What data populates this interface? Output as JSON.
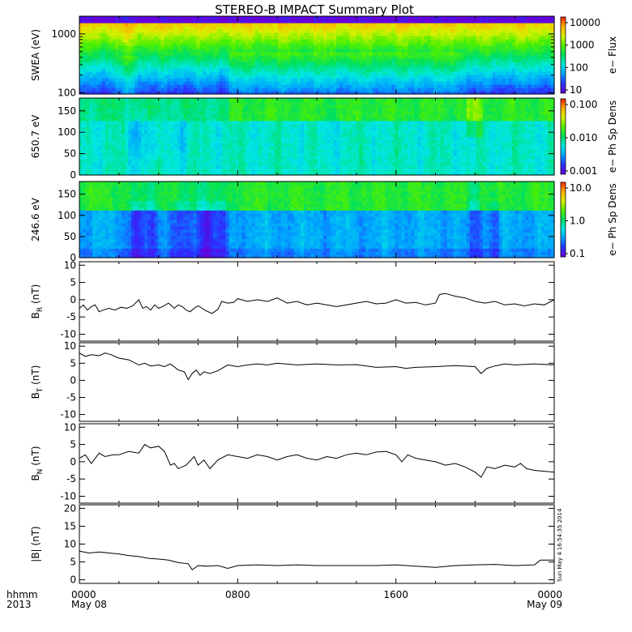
{
  "title": "STEREO-B IMPACT Summary Plot",
  "timestamp": "Sun May  4 16:54:35 2014",
  "time_axis": {
    "row1_label": "hhmm",
    "row2_label": "2013",
    "ticks": [
      {
        "hours": 0,
        "top": "0000",
        "bottom": "May 08"
      },
      {
        "hours": 8,
        "top": "0800",
        "bottom": ""
      },
      {
        "hours": 16,
        "top": "1600",
        "bottom": ""
      },
      {
        "hours": 24,
        "top": "0000",
        "bottom": "May 09"
      }
    ],
    "range_hours": [
      0,
      24
    ]
  },
  "colors": {
    "spectrogram_scale": [
      "#6a00d8",
      "#2a30ff",
      "#00a0ff",
      "#00e8e0",
      "#00e060",
      "#50f000",
      "#d8f000",
      "#ffb000",
      "#ff2000"
    ]
  },
  "chart_data": [
    {
      "type": "heatmap",
      "ylabel": "SWEA (eV)",
      "yscale": "log",
      "ylim": [
        95,
        2000
      ],
      "yticks": [
        "1000",
        "100"
      ],
      "colorbar": {
        "label": "e− Flux",
        "scale": "log",
        "ticks": [
          "10000",
          "1000",
          "100",
          "10"
        ]
      }
    },
    {
      "type": "heatmap",
      "ylabel": "650.7 eV",
      "ylim": [
        0,
        180
      ],
      "yticks": [
        "150",
        "100",
        "50",
        "0"
      ],
      "colorbar": {
        "label": "e− Ph Sp Dens",
        "scale": "log",
        "ticks": [
          "0.100",
          "0.010",
          "0.001"
        ]
      }
    },
    {
      "type": "heatmap",
      "ylabel": "246.6 eV",
      "ylim": [
        0,
        180
      ],
      "yticks": [
        "150",
        "100",
        "50",
        "0"
      ],
      "colorbar": {
        "label": "e− Ph Sp Dens",
        "scale": "log",
        "ticks": [
          "10.0",
          "1.0",
          "0.1"
        ]
      }
    },
    {
      "type": "line",
      "ylabel_main": "B",
      "ylabel_sub": "R",
      "ylabel_unit": " (nT)",
      "ylim": [
        -12,
        11
      ],
      "yticks": [
        "10",
        "5",
        "0",
        "-5",
        "-10"
      ],
      "x": [
        0,
        0.2,
        0.4,
        0.6,
        0.8,
        1.0,
        1.2,
        1.5,
        1.8,
        2.1,
        2.4,
        2.7,
        3.0,
        3.2,
        3.4,
        3.6,
        3.8,
        4.0,
        4.2,
        4.5,
        4.8,
        5.0,
        5.2,
        5.4,
        5.6,
        5.8,
        6.0,
        6.2,
        6.4,
        6.7,
        7.0,
        7.2,
        7.5,
        7.8,
        8.0,
        8.5,
        9.0,
        9.5,
        10.0,
        10.5,
        11.0,
        11.5,
        12.0,
        12.5,
        13.0,
        13.5,
        14.0,
        14.5,
        15.0,
        15.5,
        16.0,
        16.5,
        17.0,
        17.5,
        18.0,
        18.2,
        18.5,
        19.0,
        19.5,
        20.0,
        20.5,
        21.0,
        21.5,
        22.0,
        22.5,
        23.0,
        23.5,
        24.0
      ],
      "y": [
        -2.5,
        -1.5,
        -3.0,
        -2.0,
        -1.5,
        -3.5,
        -3.0,
        -2.5,
        -3.0,
        -2.2,
        -2.5,
        -1.8,
        0.0,
        -2.5,
        -2.0,
        -3.0,
        -1.5,
        -2.5,
        -2.0,
        -1.0,
        -2.5,
        -1.5,
        -2.0,
        -3.0,
        -3.5,
        -2.5,
        -1.8,
        -2.5,
        -3.2,
        -4.0,
        -2.8,
        -0.5,
        -1.0,
        -0.8,
        0.3,
        -0.5,
        0.0,
        -0.5,
        0.5,
        -1.0,
        -0.5,
        -1.5,
        -1.0,
        -1.5,
        -2.0,
        -1.5,
        -1.0,
        -0.5,
        -1.2,
        -1.0,
        0.0,
        -1.0,
        -0.8,
        -1.5,
        -1.0,
        1.5,
        1.8,
        1.0,
        0.5,
        -0.5,
        -1.0,
        -0.5,
        -1.5,
        -1.2,
        -1.8,
        -1.2,
        -1.5,
        0.0
      ]
    },
    {
      "type": "line",
      "ylabel_main": "B",
      "ylabel_sub": "T",
      "ylabel_unit": " (nT)",
      "ylim": [
        -12,
        11
      ],
      "yticks": [
        "10",
        "5",
        "0",
        "-5",
        "-10"
      ],
      "x": [
        0,
        0.3,
        0.6,
        1.0,
        1.3,
        1.6,
        2.0,
        2.5,
        3.0,
        3.3,
        3.6,
        4.0,
        4.3,
        4.6,
        5.0,
        5.3,
        5.5,
        5.7,
        5.9,
        6.1,
        6.3,
        6.6,
        7.0,
        7.5,
        8.0,
        8.5,
        9.0,
        9.5,
        10.0,
        11.0,
        12.0,
        13.0,
        14.0,
        15.0,
        16.0,
        16.5,
        17.0,
        18.0,
        19.0,
        20.0,
        20.3,
        20.6,
        21.0,
        21.5,
        22.0,
        23.0,
        24.0
      ],
      "y": [
        8.0,
        7.0,
        7.5,
        7.2,
        8.0,
        7.5,
        6.5,
        6.0,
        4.5,
        5.0,
        4.2,
        4.5,
        4.0,
        4.8,
        3.0,
        2.5,
        0.2,
        2.0,
        3.0,
        1.5,
        2.5,
        2.0,
        2.8,
        4.5,
        4.0,
        4.5,
        4.8,
        4.5,
        5.0,
        4.5,
        4.8,
        4.5,
        4.6,
        3.8,
        4.0,
        3.5,
        3.8,
        4.0,
        4.3,
        4.0,
        2.0,
        3.5,
        4.2,
        4.8,
        4.5,
        4.8,
        4.5
      ]
    },
    {
      "type": "line",
      "ylabel_main": "B",
      "ylabel_sub": "N",
      "ylabel_unit": " (nT)",
      "ylim": [
        -12,
        11
      ],
      "yticks": [
        "10",
        "5",
        "0",
        "-5",
        "-10"
      ],
      "x": [
        0,
        0.3,
        0.6,
        1.0,
        1.3,
        1.7,
        2.0,
        2.5,
        3.0,
        3.3,
        3.6,
        4.0,
        4.3,
        4.6,
        4.8,
        5.0,
        5.4,
        5.8,
        6.0,
        6.3,
        6.6,
        7.0,
        7.5,
        8.0,
        8.5,
        9.0,
        9.5,
        10.0,
        10.5,
        11.0,
        11.5,
        12.0,
        12.5,
        13.0,
        13.5,
        14.0,
        14.5,
        15.0,
        15.5,
        16.0,
        16.3,
        16.6,
        17.0,
        17.5,
        18.0,
        18.5,
        19.0,
        19.5,
        20.0,
        20.3,
        20.6,
        21.0,
        21.5,
        22.0,
        22.3,
        22.6,
        23.0,
        24.0
      ],
      "y": [
        1.0,
        2.0,
        -0.5,
        2.5,
        1.5,
        2.0,
        2.0,
        3.0,
        2.5,
        5.0,
        4.0,
        4.5,
        3.0,
        -1.0,
        -0.5,
        -2.0,
        -1.0,
        1.5,
        -1.0,
        0.5,
        -2.0,
        0.5,
        2.0,
        1.5,
        1.0,
        2.0,
        1.5,
        0.5,
        1.5,
        2.0,
        1.0,
        0.5,
        1.5,
        1.0,
        2.0,
        2.5,
        2.0,
        2.8,
        3.0,
        2.0,
        0.0,
        2.0,
        1.0,
        0.5,
        0.0,
        -1.0,
        -0.5,
        -1.5,
        -3.0,
        -4.5,
        -1.5,
        -2.0,
        -1.0,
        -1.5,
        -0.5,
        -2.0,
        -2.5,
        -3.0
      ]
    },
    {
      "type": "line",
      "ylabel_main": "|B|",
      "ylabel_sub": "",
      "ylabel_unit": " (nT)",
      "ylim": [
        -1,
        21
      ],
      "yticks": [
        "20",
        "15",
        "10",
        "5",
        "0"
      ],
      "x": [
        0,
        0.5,
        1.0,
        1.5,
        2.0,
        2.5,
        3.0,
        3.5,
        4.0,
        4.5,
        5.0,
        5.5,
        5.7,
        6.0,
        6.5,
        7.0,
        7.5,
        8.0,
        9.0,
        10.0,
        11.0,
        12.0,
        13.0,
        14.0,
        15.0,
        16.0,
        17.0,
        18.0,
        19.0,
        20.0,
        21.0,
        22.0,
        23.0,
        23.3,
        24.0
      ],
      "y": [
        8.0,
        7.5,
        7.8,
        7.5,
        7.2,
        6.8,
        6.5,
        6.0,
        5.8,
        5.5,
        4.8,
        4.5,
        2.8,
        4.0,
        3.8,
        4.0,
        3.2,
        4.0,
        4.2,
        4.0,
        4.2,
        4.0,
        4.0,
        4.0,
        4.0,
        4.2,
        3.8,
        3.5,
        4.0,
        4.2,
        4.3,
        4.0,
        4.2,
        5.5,
        5.5
      ]
    }
  ]
}
